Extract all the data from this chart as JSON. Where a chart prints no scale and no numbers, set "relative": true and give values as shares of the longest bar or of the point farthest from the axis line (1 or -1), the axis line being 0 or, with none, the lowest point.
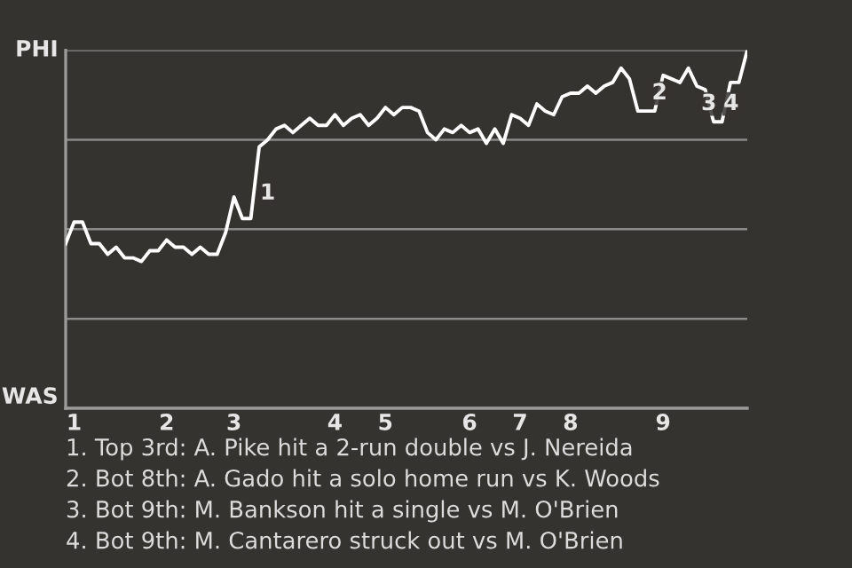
{
  "chart_data": {
    "type": "line",
    "relative": true,
    "categories": [
      null,
      "1",
      null,
      null,
      null,
      null,
      null,
      null,
      null,
      null,
      null,
      null,
      "2",
      null,
      null,
      null,
      null,
      null,
      null,
      null,
      "3",
      null,
      null,
      null,
      null,
      null,
      null,
      null,
      null,
      null,
      null,
      null,
      "4",
      null,
      null,
      null,
      null,
      null,
      "5",
      null,
      null,
      null,
      null,
      null,
      null,
      null,
      null,
      null,
      "6",
      null,
      null,
      null,
      null,
      null,
      "7",
      null,
      null,
      null,
      null,
      null,
      "8",
      null,
      null,
      null,
      null,
      null,
      null,
      null,
      null,
      null,
      null,
      "9",
      null,
      null,
      null,
      null,
      null,
      null,
      null,
      null,
      null,
      null
    ],
    "series": [
      {
        "color": "#ffffff",
        "values": [
          0.46,
          0.52,
          0.52,
          0.46,
          0.46,
          0.43,
          0.45,
          0.42,
          0.42,
          0.41,
          0.44,
          0.44,
          0.47,
          0.45,
          0.45,
          0.43,
          0.45,
          0.43,
          0.43,
          0.49,
          0.59,
          0.53,
          0.53,
          0.73,
          0.75,
          0.78,
          0.79,
          0.77,
          0.79,
          0.81,
          0.79,
          0.79,
          0.82,
          0.79,
          0.81,
          0.82,
          0.79,
          0.81,
          0.84,
          0.82,
          0.84,
          0.84,
          0.83,
          0.77,
          0.75,
          0.78,
          0.77,
          0.79,
          0.77,
          0.78,
          0.74,
          0.78,
          0.74,
          0.82,
          0.81,
          0.79,
          0.85,
          0.83,
          0.82,
          0.87,
          0.88,
          0.88,
          0.9,
          0.88,
          0.9,
          0.91,
          0.95,
          0.92,
          0.83,
          0.83,
          0.83,
          0.93,
          0.92,
          0.91,
          0.95,
          0.9,
          0.89,
          0.8,
          0.8,
          0.91,
          0.91,
          1
        ]
      }
    ],
    "ref_lines": [
      {
        "axis": "y",
        "value": 0,
        "label": "WAS",
        "color": "#9a9a98"
      },
      {
        "axis": "y",
        "value": 0.25,
        "color": "#8a8a88"
      },
      {
        "axis": "y",
        "value": 0.5,
        "color": "#8a8a88"
      },
      {
        "axis": "y",
        "value": 0.75,
        "color": "#8a8a88"
      },
      {
        "axis": "y",
        "value": 1,
        "label": "PHI",
        "color": "#8a8a88"
      }
    ],
    "annotations": [
      "1",
      "2",
      "3",
      "4",
      "1. Top 3rd: A. Pike hit a 2-run double vs J. Nereida",
      "2. Bot 8th: A. Gado hit a solo home run vs K. Woods",
      "3. Bot 9th: M. Bankson hit a single vs M. O'Brien",
      "4. Bot 9th: M. Cantarero struck out vs M. O'Brien"
    ]
  }
}
